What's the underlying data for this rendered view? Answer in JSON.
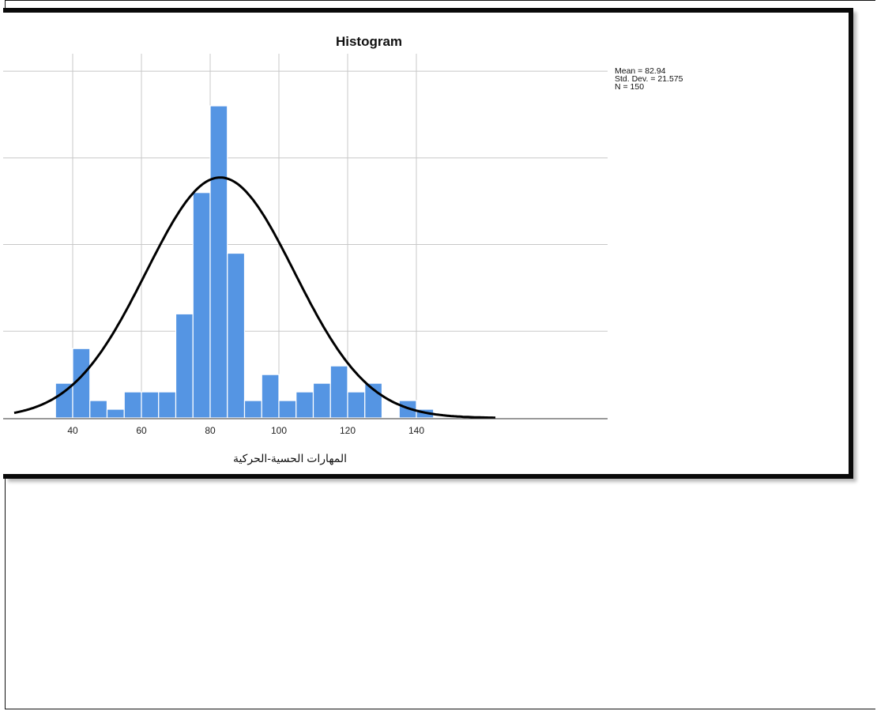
{
  "chart_data": {
    "type": "bar",
    "title": "Histogram",
    "xlabel": "المهارات الحسية-الحركية",
    "ylabel": "",
    "x_ticks": [
      40,
      60,
      80,
      100,
      120,
      140
    ],
    "xlim": [
      28,
      158
    ],
    "ylim": [
      0,
      21
    ],
    "bin_width": 5,
    "bins": [
      {
        "start": 35,
        "count": 2
      },
      {
        "start": 40,
        "count": 4
      },
      {
        "start": 45,
        "count": 1
      },
      {
        "start": 50,
        "count": 0.5
      },
      {
        "start": 55,
        "count": 1.5
      },
      {
        "start": 60,
        "count": 1.5
      },
      {
        "start": 65,
        "count": 1.5
      },
      {
        "start": 70,
        "count": 6
      },
      {
        "start": 75,
        "count": 13
      },
      {
        "start": 80,
        "count": 18
      },
      {
        "start": 85,
        "count": 9.5
      },
      {
        "start": 90,
        "count": 1
      },
      {
        "start": 95,
        "count": 2.5
      },
      {
        "start": 100,
        "count": 1
      },
      {
        "start": 105,
        "count": 1.5
      },
      {
        "start": 110,
        "count": 2
      },
      {
        "start": 115,
        "count": 3
      },
      {
        "start": 120,
        "count": 1.5
      },
      {
        "start": 125,
        "count": 2
      },
      {
        "start": 130,
        "count": 0
      },
      {
        "start": 135,
        "count": 1
      },
      {
        "start": 140,
        "count": 0.5
      }
    ],
    "normal_curve": {
      "mean": 82.94,
      "std": 21.575,
      "n": 150
    },
    "stats_text": [
      "Mean = 82.94",
      "Std. Dev. = 21.575",
      "N = 150"
    ],
    "grid": true,
    "colors": {
      "bar": "#5595e3",
      "bar_edge": "#ffffff",
      "curve": "#000000",
      "grid": "#c8c8c8"
    }
  }
}
